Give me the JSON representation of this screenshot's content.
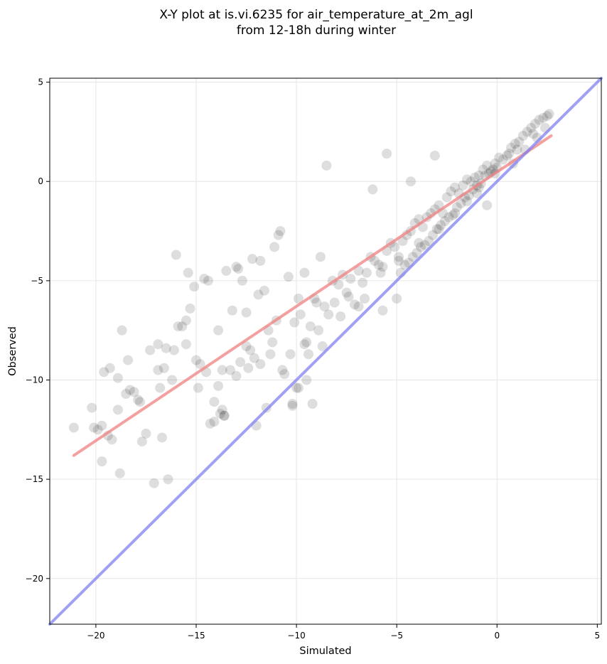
{
  "chart_data": {
    "type": "scatter",
    "title_line1": "X-Y plot at is.vi.6235 for air_temperature_at_2m_agl",
    "title_line2": "from 12-18h during winter",
    "xlabel": "Simulated",
    "ylabel": "Observed",
    "xlim": [
      -22.3,
      5.2
    ],
    "ylim": [
      -22.3,
      5.2
    ],
    "xticks": [
      -20,
      -15,
      -10,
      -5,
      0,
      5
    ],
    "yticks": [
      -20,
      -15,
      -10,
      -5,
      0,
      5
    ],
    "xtick_labels": [
      "−20",
      "−15",
      "−10",
      "−5",
      "0",
      "5"
    ],
    "ytick_labels": [
      "−20",
      "−15",
      "−10",
      "−5",
      "0",
      "5"
    ],
    "grid": true,
    "colors": {
      "points": "#000000",
      "regression": "#f08080",
      "identity": "#8080f0",
      "grid": "#e6e6e6"
    },
    "series": [
      {
        "kind": "points",
        "x": [
          -21.1,
          -20.2,
          -20.1,
          -19.9,
          -19.7,
          -19.6,
          -19.4,
          -19.3,
          -19.2,
          -18.9,
          -18.8,
          -18.7,
          -18.4,
          -18.3,
          -18.1,
          -17.9,
          -17.7,
          -17.5,
          -17.3,
          -17.1,
          -16.9,
          -16.8,
          -16.7,
          -16.5,
          -16.4,
          -16.2,
          -16.0,
          -15.9,
          -15.7,
          -15.5,
          -15.4,
          -15.3,
          -15.1,
          -14.9,
          -14.8,
          -14.6,
          -14.4,
          -14.3,
          -14.1,
          -13.9,
          -13.7,
          -13.6,
          -13.5,
          -13.3,
          -13.2,
          -13.0,
          -12.9,
          -12.7,
          -12.5,
          -12.4,
          -12.2,
          -12.1,
          -11.9,
          -11.8,
          -11.6,
          -11.4,
          -11.3,
          -11.1,
          -10.9,
          -10.8,
          -10.6,
          -10.4,
          -10.3,
          -10.1,
          -9.9,
          -9.8,
          -9.6,
          -9.4,
          -9.3,
          -9.1,
          -8.9,
          -8.8,
          -8.6,
          -8.4,
          -8.2,
          -8.1,
          -7.9,
          -7.7,
          -7.5,
          -7.3,
          -7.1,
          -6.9,
          -6.7,
          -6.5,
          -6.3,
          -6.1,
          -5.9,
          -5.7,
          -5.5,
          -5.3,
          -5.1,
          -4.9,
          -4.7,
          -4.5,
          -4.3,
          -4.1,
          -3.9,
          -3.7,
          -3.5,
          -3.3,
          -3.1,
          -2.9,
          -2.7,
          -2.5,
          -2.3,
          -2.1,
          -1.9,
          -1.7,
          -1.5,
          -1.3,
          -1.1,
          -0.9,
          -0.7,
          -0.5,
          -0.3,
          -0.1,
          0.1,
          0.3,
          0.5,
          0.7,
          0.9,
          1.1,
          1.3,
          1.5,
          1.7,
          1.9,
          2.1,
          2.3,
          2.5,
          2.6,
          -14.1,
          -13.8,
          -13.6,
          -13.9,
          -13.7,
          -12.8,
          -12.5,
          -11.2,
          -10.7,
          -9.6,
          -9.5,
          -9.2,
          -10.2,
          -10.0,
          -11.5,
          -12.0,
          -7.4,
          -6.9,
          -5.7,
          -5.0,
          -4.8,
          -4.6,
          -4.4,
          -4.2,
          -4.0,
          -3.8,
          -3.6,
          -3.4,
          -3.2,
          -3.0,
          -2.8,
          -2.6,
          -2.4,
          -2.2,
          -2.0,
          -1.8,
          -1.6,
          -1.4,
          -1.2,
          -1.0,
          -0.8,
          -0.6,
          -0.4,
          -0.2,
          0.0,
          -17.8,
          -18.9,
          -16.1,
          -16.6,
          -15.5,
          -13.0,
          -11.8,
          -8.5,
          -6.2,
          -3.1,
          -5.5,
          -4.3,
          -0.5,
          -1.0,
          0.6,
          1.0,
          1.8,
          2.4,
          -9.9,
          -10.2,
          -8.7,
          -9.5,
          -16.9,
          -18.5,
          -19.7,
          -14.5,
          -15.0,
          -12.3,
          -11.0,
          -9.0,
          -7.8,
          -6.6,
          -5.8,
          -4.9,
          -3.9,
          -2.9,
          -2.1,
          -1.5,
          -0.9,
          -0.1,
          0.8,
          1.4,
          2.0
        ],
        "y": [
          -12.4,
          -11.4,
          -12.4,
          -12.5,
          -14.1,
          -9.6,
          -12.8,
          -9.4,
          -13.0,
          -11.5,
          -14.7,
          -7.5,
          -9.0,
          -10.5,
          -10.6,
          -11.0,
          -13.1,
          -12.7,
          -8.5,
          -15.2,
          -9.5,
          -10.4,
          -12.9,
          -8.4,
          -15.0,
          -10.0,
          -3.7,
          -7.3,
          -7.3,
          -8.2,
          -4.6,
          -6.4,
          -5.3,
          -10.4,
          -9.2,
          -4.9,
          -5.0,
          -12.2,
          -11.1,
          -7.5,
          -11.5,
          -11.8,
          -4.5,
          -9.5,
          -6.5,
          -9.8,
          -4.4,
          -5.0,
          -6.6,
          -9.4,
          -3.9,
          -8.9,
          -5.7,
          -9.2,
          -5.5,
          -7.5,
          -8.7,
          -3.3,
          -2.7,
          -2.5,
          -9.7,
          -4.8,
          -8.7,
          -7.1,
          -5.9,
          -6.7,
          -4.6,
          -8.7,
          -7.3,
          -5.9,
          -7.5,
          -3.8,
          -6.3,
          -6.7,
          -5.0,
          -6.1,
          -5.2,
          -4.7,
          -5.6,
          -4.9,
          -6.2,
          -4.5,
          -5.1,
          -4.6,
          -3.8,
          -4.0,
          -4.2,
          -4.3,
          -3.5,
          -3.1,
          -3.3,
          -4.0,
          -3.0,
          -2.7,
          -2.5,
          -2.1,
          -1.9,
          -2.3,
          -1.8,
          -1.6,
          -1.4,
          -1.2,
          -1.6,
          -0.8,
          -0.5,
          -0.3,
          -0.6,
          -0.2,
          0.1,
          0.0,
          0.2,
          0.3,
          0.6,
          0.8,
          0.5,
          0.9,
          1.2,
          1.1,
          1.3,
          1.7,
          1.9,
          2.0,
          2.3,
          2.5,
          2.7,
          2.9,
          3.1,
          3.2,
          3.3,
          3.4,
          -12.1,
          -11.7,
          -11.8,
          -10.3,
          -9.5,
          -9.1,
          -8.3,
          -8.1,
          -9.5,
          -8.2,
          -10.0,
          -11.2,
          -11.3,
          -10.4,
          -11.4,
          -12.3,
          -5.8,
          -6.3,
          -6.5,
          -5.9,
          -4.6,
          -4.2,
          -4.1,
          -3.8,
          -3.6,
          -3.3,
          -3.2,
          -3.0,
          -2.7,
          -2.4,
          -2.2,
          -2.0,
          -1.8,
          -1.7,
          -1.3,
          -1.1,
          -0.8,
          -0.7,
          -0.4,
          -0.2,
          -0.1,
          0.3,
          0.4,
          0.6,
          0.7,
          -11.1,
          -9.9,
          -8.5,
          -9.4,
          -7.0,
          -4.3,
          -4.0,
          0.8,
          -0.4,
          1.3,
          1.4,
          0.0,
          -1.2,
          -0.6,
          1.4,
          1.6,
          2.4,
          2.7,
          -10.4,
          -11.2,
          -8.3,
          -8.1,
          -8.2,
          -10.7,
          -12.3,
          -9.6,
          -9.0,
          -8.5,
          -7.0,
          -6.1,
          -6.8,
          -5.9,
          -4.6,
          -3.8,
          -3.1,
          -2.4,
          -1.6,
          -1.0,
          -0.3,
          0.4,
          0.9,
          1.6,
          2.2
        ]
      },
      {
        "kind": "regression",
        "x": [
          -21.1,
          2.7
        ],
        "y": [
          -13.8,
          2.3
        ]
      },
      {
        "kind": "identity",
        "x": [
          -22.3,
          5.2
        ],
        "y": [
          -22.3,
          5.2
        ]
      }
    ]
  }
}
